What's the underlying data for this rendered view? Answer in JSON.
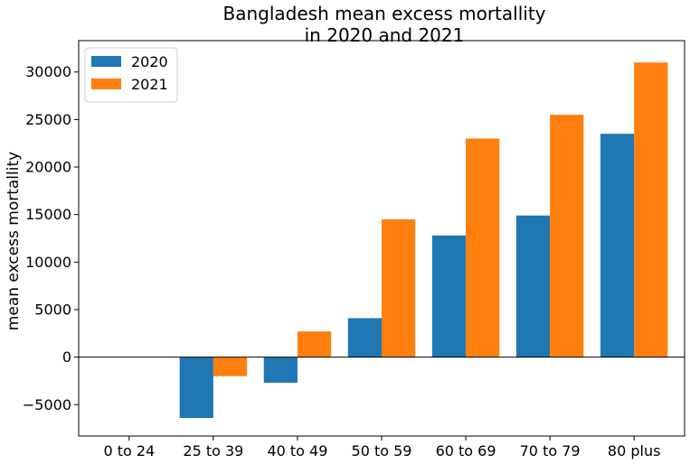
{
  "chart_data": {
    "type": "bar",
    "title_lines": [
      "Bangladesh mean excess mortallity",
      "in 2020 and 2021"
    ],
    "xlabel": "",
    "ylabel": "mean excess mortallity",
    "categories": [
      "0 to 24",
      "25 to 39",
      "40 to 49",
      "50 to 59",
      "60 to 69",
      "70 to 79",
      "80 plus"
    ],
    "series": [
      {
        "name": "2020",
        "color": "#1f77b4",
        "values": [
          0,
          -6400,
          -2700,
          4100,
          12800,
          14900,
          23500
        ]
      },
      {
        "name": "2021",
        "color": "#ff7f0e",
        "values": [
          0,
          -2000,
          2700,
          14500,
          23000,
          25500,
          31000
        ]
      }
    ],
    "ylim": [
      -8300,
      33300
    ],
    "yticks": [
      -5000,
      0,
      5000,
      10000,
      15000,
      20000,
      25000,
      30000
    ],
    "ytick_labels": [
      "−5000",
      "0",
      "5000",
      "10000",
      "15000",
      "20000",
      "25000",
      "30000"
    ],
    "zero_line": true,
    "grid": false,
    "legend_position": "top-left"
  }
}
